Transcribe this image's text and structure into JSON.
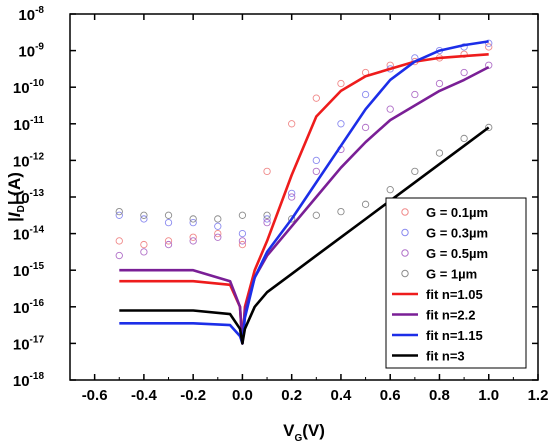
{
  "chart_data": {
    "type": "scatter",
    "title": "",
    "xlabel": {
      "main": "V",
      "sub": "G",
      "tail": "(V)"
    },
    "ylabel": {
      "pre": "|",
      "main": "I",
      "sub": "D",
      "tail": "| (A)"
    },
    "xlim": [
      -0.7,
      1.2
    ],
    "ylim_exponent": [
      -18,
      -8
    ],
    "y_scale": "log",
    "grid": false,
    "legend_position": "bottom-right",
    "x_ticks": [
      "-0.6",
      "-0.4",
      "-0.2",
      "0.0",
      "0.2",
      "0.4",
      "0.6",
      "0.8",
      "1.0",
      "1.2"
    ],
    "y_ticks": [
      {
        "base": "10",
        "exp": "-8",
        "value": -8
      },
      {
        "base": "10",
        "exp": "-9",
        "value": -9
      },
      {
        "base": "10",
        "exp": "-10",
        "value": -10
      },
      {
        "base": "10",
        "exp": "-11",
        "value": -11
      },
      {
        "base": "10",
        "exp": "-12",
        "value": -12
      },
      {
        "base": "10",
        "exp": "-13",
        "value": -13
      },
      {
        "base": "10",
        "exp": "-14",
        "value": -14
      },
      {
        "base": "10",
        "exp": "-15",
        "value": -15
      },
      {
        "base": "10",
        "exp": "-16",
        "value": -16
      },
      {
        "base": "10",
        "exp": "-17",
        "value": -17
      },
      {
        "base": "10",
        "exp": "-18",
        "value": -18
      }
    ],
    "series": [
      {
        "name": "G = 0.1µm",
        "kind": "scatter",
        "color": "#f08a8a",
        "x": [
          -0.5,
          -0.4,
          -0.3,
          -0.2,
          -0.1,
          0.0,
          0.1,
          0.2,
          0.3,
          0.4,
          0.5,
          0.6,
          0.7,
          0.8,
          0.9,
          1.0
        ],
        "log10_y": [
          -14.2,
          -14.3,
          -14.2,
          -14.1,
          -14.0,
          -14.3,
          -12.3,
          -11.0,
          -10.3,
          -9.9,
          -9.6,
          -9.4,
          -9.3,
          -9.2,
          -9.1,
          -8.9
        ]
      },
      {
        "name": "G = 0.3µm",
        "kind": "scatter",
        "color": "#8a8aef",
        "x": [
          -0.5,
          -0.4,
          -0.3,
          -0.2,
          -0.1,
          0.0,
          0.1,
          0.2,
          0.3,
          0.4,
          0.5,
          0.6,
          0.7,
          0.8,
          0.9,
          1.0
        ],
        "log10_y": [
          -13.5,
          -13.6,
          -13.7,
          -13.7,
          -13.8,
          -14.0,
          -13.6,
          -12.9,
          -12.0,
          -11.0,
          -10.2,
          -9.5,
          -9.2,
          -9.0,
          -8.9,
          -8.8
        ]
      },
      {
        "name": "G = 0.5µm",
        "kind": "scatter",
        "color": "#b070c8",
        "x": [
          -0.5,
          -0.4,
          -0.3,
          -0.2,
          -0.1,
          0.0,
          0.1,
          0.2,
          0.3,
          0.4,
          0.5,
          0.6,
          0.7,
          0.8,
          0.9,
          1.0
        ],
        "log10_y": [
          -14.6,
          -14.5,
          -14.3,
          -14.2,
          -14.1,
          -14.2,
          -13.7,
          -13.0,
          -12.3,
          -11.7,
          -11.1,
          -10.6,
          -10.2,
          -9.9,
          -9.6,
          -9.4
        ]
      },
      {
        "name": "G = 1µm",
        "kind": "scatter",
        "color": "#8c8c8c",
        "x": [
          -0.5,
          -0.4,
          -0.3,
          -0.2,
          -0.1,
          0.0,
          0.1,
          0.2,
          0.3,
          0.4,
          0.5,
          0.6,
          0.7,
          0.8,
          0.9,
          1.0
        ],
        "log10_y": [
          -13.4,
          -13.5,
          -13.5,
          -13.6,
          -13.6,
          -13.5,
          -13.5,
          -13.6,
          -13.5,
          -13.4,
          -13.2,
          -12.8,
          -12.3,
          -11.8,
          -11.4,
          -11.1
        ]
      },
      {
        "name": "fit n=1.05",
        "kind": "line",
        "color": "#ee1c1c",
        "x": [
          -0.5,
          -0.2,
          -0.05,
          -0.01,
          0.0,
          0.01,
          0.05,
          0.1,
          0.2,
          0.3,
          0.4,
          0.5,
          0.6,
          0.7,
          0.8,
          0.9,
          1.0
        ],
        "log10_y": [
          -15.3,
          -15.3,
          -15.4,
          -16.0,
          -17.0,
          -16.0,
          -15.0,
          -14.2,
          -12.4,
          -10.8,
          -10.1,
          -9.7,
          -9.5,
          -9.3,
          -9.2,
          -9.15,
          -9.1
        ]
      },
      {
        "name": "fit n=2.2",
        "kind": "line",
        "color": "#7a1f96",
        "x": [
          -0.5,
          -0.2,
          -0.05,
          -0.01,
          0.0,
          0.01,
          0.05,
          0.1,
          0.2,
          0.3,
          0.4,
          0.5,
          0.6,
          0.7,
          0.8,
          0.9,
          1.0
        ],
        "log10_y": [
          -15.0,
          -15.0,
          -15.3,
          -16.0,
          -17.0,
          -16.1,
          -15.2,
          -14.6,
          -13.8,
          -13.0,
          -12.2,
          -11.5,
          -10.9,
          -10.5,
          -10.1,
          -9.8,
          -9.45
        ]
      },
      {
        "name": "fit n=1.15",
        "kind": "line",
        "color": "#1c2ee8",
        "x": [
          -0.5,
          -0.2,
          -0.05,
          -0.01,
          0.0,
          0.01,
          0.05,
          0.1,
          0.2,
          0.3,
          0.4,
          0.5,
          0.6,
          0.7,
          0.8,
          0.9,
          1.0
        ],
        "log10_y": [
          -16.45,
          -16.45,
          -16.5,
          -16.8,
          -17.0,
          -16.3,
          -15.2,
          -14.5,
          -13.6,
          -12.6,
          -11.6,
          -10.6,
          -9.8,
          -9.3,
          -9.0,
          -8.85,
          -8.75
        ]
      },
      {
        "name": "fit n=3",
        "kind": "line",
        "color": "#000000",
        "x": [
          -0.5,
          -0.2,
          -0.05,
          -0.01,
          0.0,
          0.01,
          0.05,
          0.1,
          0.2,
          0.3,
          0.4,
          0.5,
          0.6,
          0.7,
          0.8,
          0.9,
          1.0
        ],
        "log10_y": [
          -16.1,
          -16.1,
          -16.2,
          -16.6,
          -17.0,
          -16.6,
          -16.0,
          -15.6,
          -15.1,
          -14.6,
          -14.1,
          -13.6,
          -13.1,
          -12.6,
          -12.1,
          -11.6,
          -11.1
        ]
      }
    ]
  }
}
